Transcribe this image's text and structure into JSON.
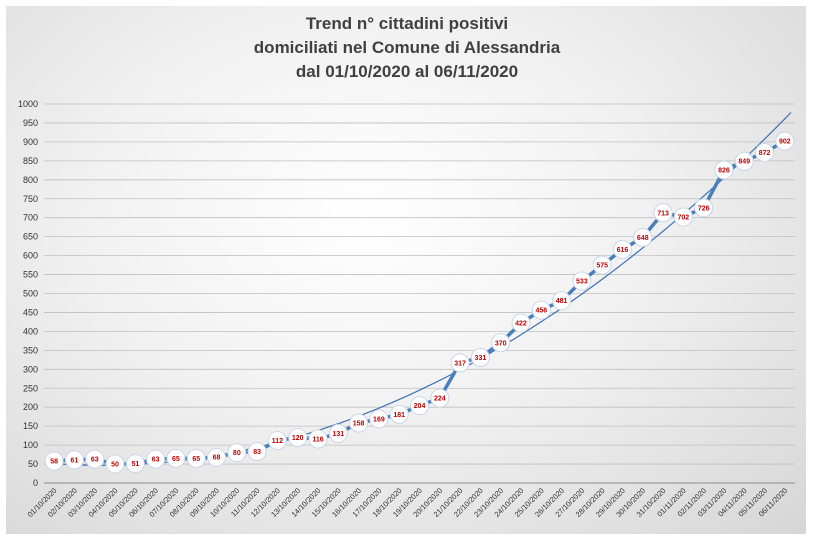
{
  "chart_data": {
    "type": "line",
    "title_lines": [
      "Trend n° cittadini positivi",
      "domiciliati nel Comune di Alessandria",
      "dal 01/10/2020 al 06/11/2020"
    ],
    "xlabel": "",
    "ylabel": "",
    "ylim": [
      0,
      1000
    ],
    "ytick_step": 50,
    "grid": "horizontal",
    "trendline": "polynomial",
    "colors": {
      "line": "#4a7ebb",
      "trend": "#3f6fb6",
      "label": "#c00000",
      "grid": "#bfbfbf"
    },
    "categories": [
      "01/10/2020",
      "02/10/2020",
      "03/10/2020",
      "04/10/2020",
      "05/10/2020",
      "06/10/2020",
      "07/10/2020",
      "08/10/2020",
      "09/10/2020",
      "10/10/2020",
      "11/10/2020",
      "12/10/2020",
      "13/10/2020",
      "14/10/2020",
      "15/10/2020",
      "16/10/2020",
      "17/10/2020",
      "18/10/2020",
      "19/10/2020",
      "20/10/2020",
      "21/10/2020",
      "22/10/2020",
      "23/10/2020",
      "24/10/2020",
      "25/10/2020",
      "26/10/2020",
      "27/10/2020",
      "28/10/2020",
      "29/10/2020",
      "30/10/2020",
      "31/10/2020",
      "01/11/2020",
      "02/11/2020",
      "03/11/2020",
      "04/11/2020",
      "05/11/2020",
      "06/11/2020"
    ],
    "values": [
      58,
      61,
      63,
      50,
      51,
      63,
      65,
      65,
      68,
      80,
      83,
      112,
      120,
      116,
      131,
      158,
      169,
      181,
      204,
      224,
      317,
      331,
      370,
      422,
      456,
      481,
      533,
      575,
      616,
      648,
      713,
      702,
      726,
      826,
      849,
      872,
      902
    ]
  }
}
